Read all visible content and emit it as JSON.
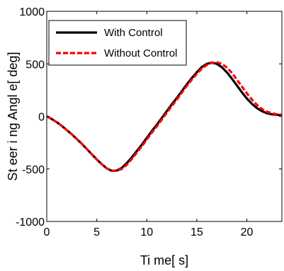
{
  "chart_data": {
    "type": "line",
    "title": "",
    "xlabel": "Ti me[ s]",
    "ylabel": "St eer i ng Angl e[ deg]",
    "xlim": [
      0,
      23.5
    ],
    "ylim": [
      -1000,
      1000
    ],
    "x_ticks": [
      0,
      5,
      10,
      15,
      20
    ],
    "y_ticks": [
      -1000,
      -500,
      0,
      500,
      1000
    ],
    "x_tick_labels": [
      "0",
      "5",
      "10",
      "15",
      "20"
    ],
    "y_tick_labels": [
      "-1000",
      "-500",
      "0",
      "500",
      "1000"
    ],
    "grid": false,
    "legend_position": "top-left",
    "series": [
      {
        "name": "With Control",
        "color": "#000000",
        "style": "solid",
        "x": [
          0,
          0.5,
          1,
          1.5,
          2,
          2.5,
          3,
          3.5,
          4,
          4.5,
          5,
          5.5,
          6,
          6.5,
          7,
          7.5,
          8,
          8.5,
          9,
          9.5,
          10,
          10.5,
          11,
          11.5,
          12,
          12.5,
          13,
          13.5,
          14,
          14.5,
          15,
          15.5,
          16,
          16.5,
          17,
          17.5,
          18,
          18.5,
          19,
          19.5,
          20,
          20.5,
          21,
          21.5,
          22,
          22.5,
          23,
          23.5
        ],
        "y": [
          0,
          -25,
          -55,
          -90,
          -130,
          -170,
          -215,
          -260,
          -310,
          -360,
          -410,
          -455,
          -495,
          -518,
          -515,
          -490,
          -445,
          -390,
          -330,
          -270,
          -205,
          -140,
          -80,
          -15,
          50,
          115,
          175,
          240,
          305,
          365,
          420,
          470,
          500,
          512,
          500,
          468,
          420,
          360,
          295,
          230,
          170,
          120,
          80,
          50,
          30,
          20,
          15,
          10
        ]
      },
      {
        "name": "Without Control",
        "color": "#ff0000",
        "style": "dashed",
        "x": [
          0,
          0.5,
          1,
          1.5,
          2,
          2.5,
          3,
          3.5,
          4,
          4.5,
          5,
          5.5,
          6,
          6.5,
          7,
          7.5,
          8,
          8.5,
          9,
          9.5,
          10,
          10.5,
          11,
          11.5,
          12,
          12.5,
          13,
          13.5,
          14,
          14.5,
          15,
          15.5,
          16,
          16.5,
          17,
          17.5,
          18,
          18.5,
          19,
          19.5,
          20,
          20.5,
          21,
          21.5,
          22,
          22.5,
          23,
          23.5
        ],
        "y": [
          0,
          -25,
          -55,
          -90,
          -130,
          -170,
          -215,
          -260,
          -310,
          -360,
          -410,
          -455,
          -495,
          -518,
          -518,
          -500,
          -460,
          -405,
          -345,
          -285,
          -220,
          -155,
          -95,
          -30,
          35,
          100,
          160,
          225,
          290,
          350,
          405,
          455,
          490,
          510,
          515,
          500,
          465,
          415,
          350,
          285,
          220,
          160,
          110,
          70,
          45,
          30,
          20,
          15
        ]
      }
    ]
  }
}
